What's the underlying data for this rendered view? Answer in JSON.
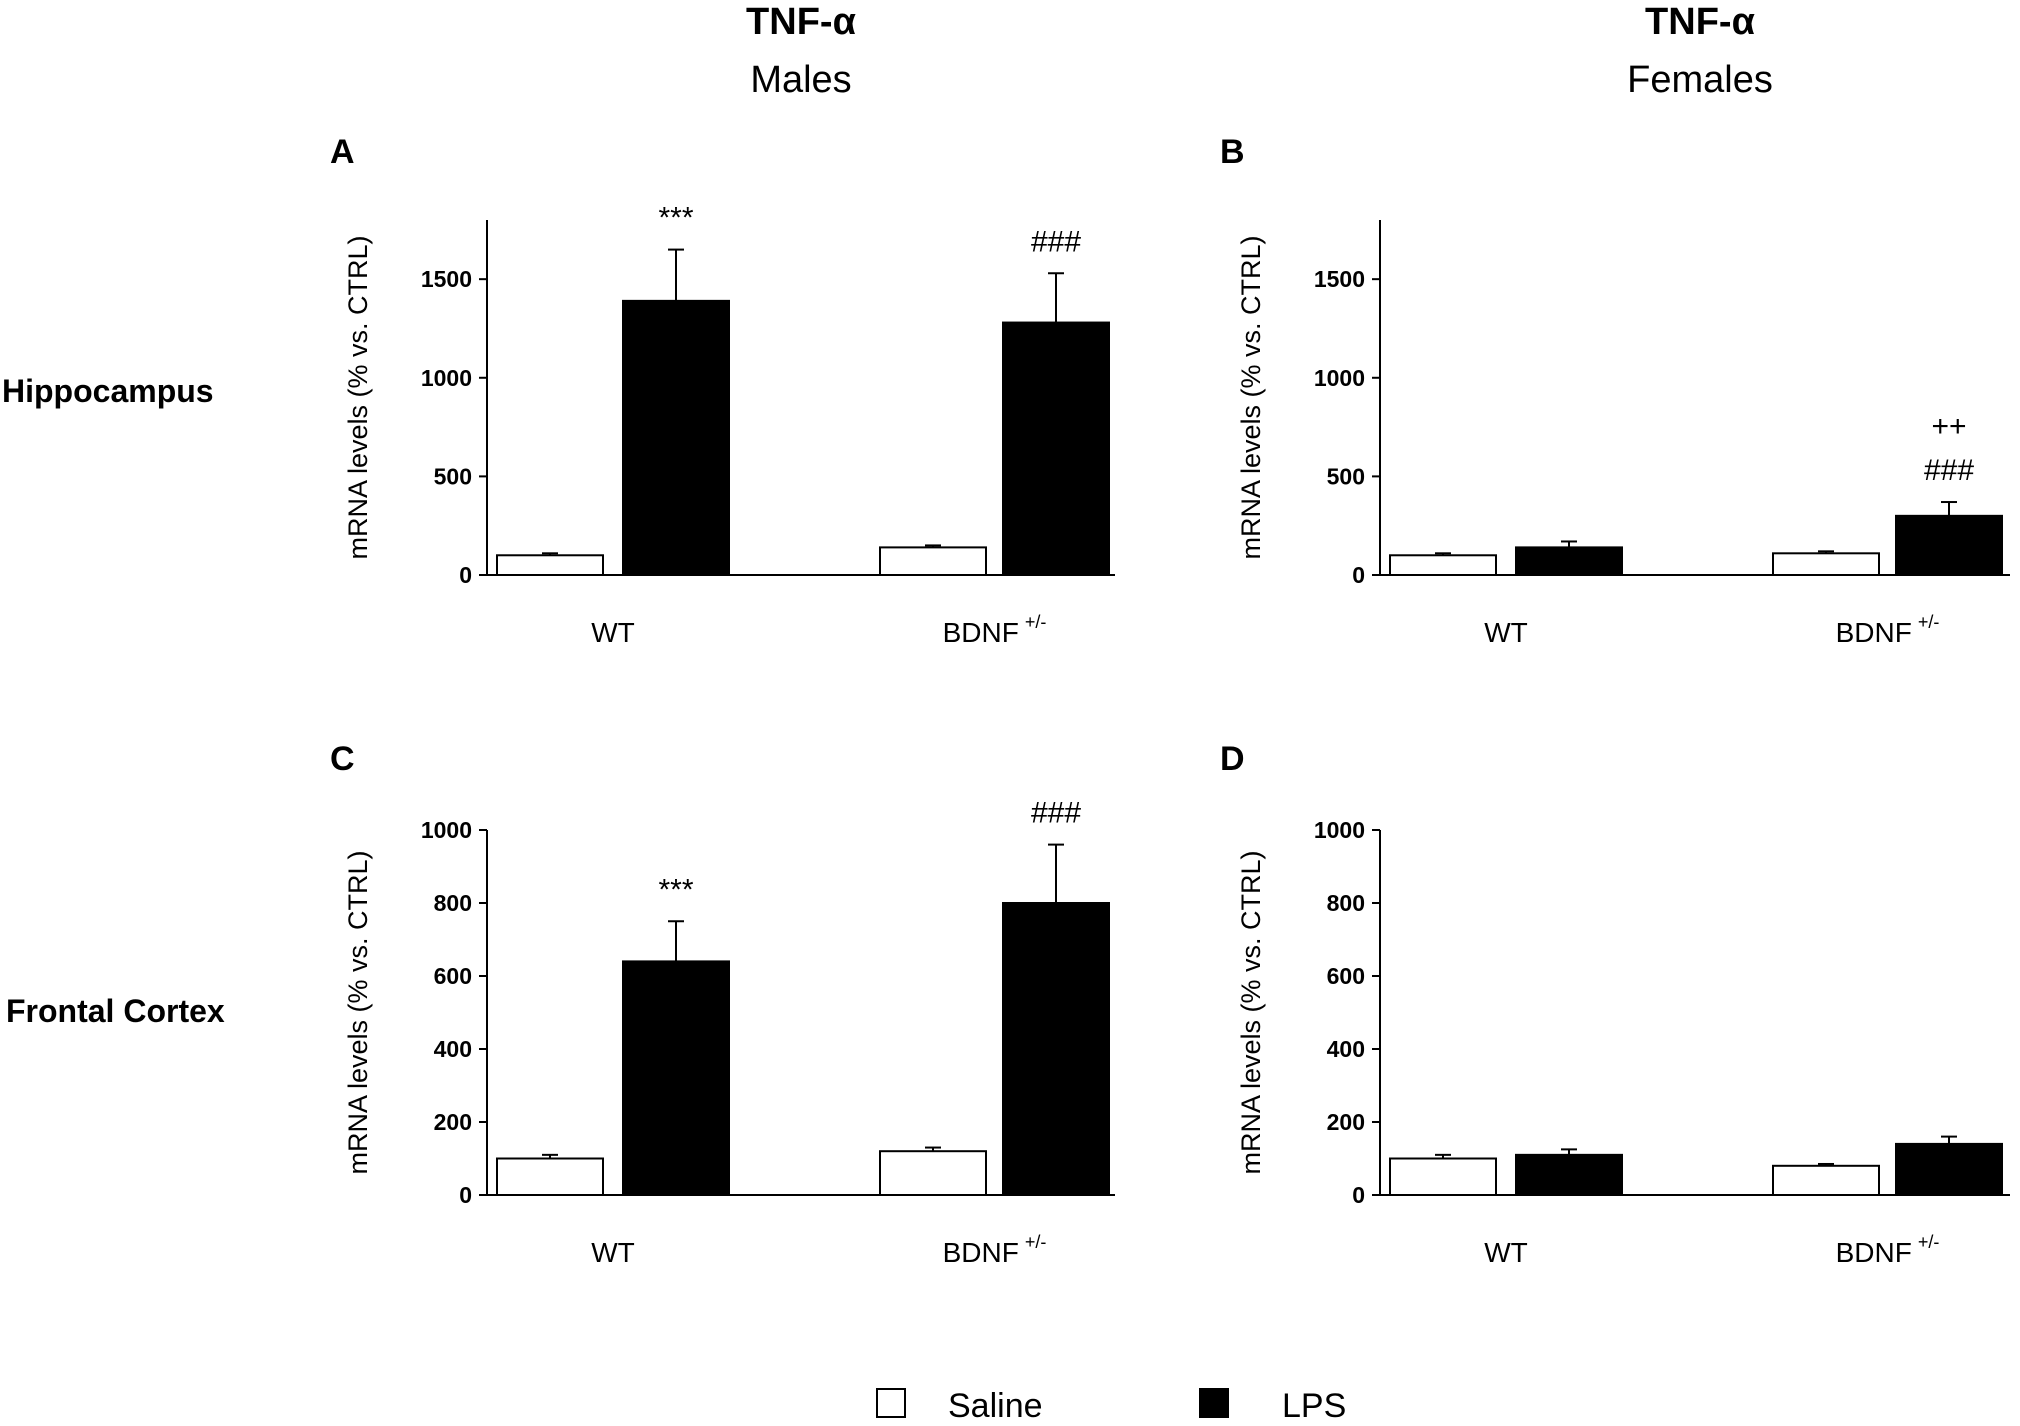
{
  "header": {
    "males_title": "TNF-α",
    "males_subtitle": "Males",
    "females_title": "TNF-α",
    "females_subtitle": "Females"
  },
  "rows": {
    "hippocampus": "Hippocampus",
    "frontal_cortex": "Frontal Cortex"
  },
  "legend": {
    "saline_label": "Saline",
    "lps_label": "LPS",
    "saline_color": "#ffffff",
    "lps_color": "#000000"
  },
  "chart_data": [
    {
      "panel": "A",
      "type": "bar",
      "region": "Hippocampus",
      "sex": "Males",
      "ylabel": "mRNA levels (% vs. CTRL)",
      "ylim": [
        0,
        1800
      ],
      "yticks": [
        0,
        500,
        1000,
        1500
      ],
      "categories": [
        {
          "label": "WT",
          "sup": ""
        },
        {
          "label": "BDNF",
          "sup": "+/-"
        }
      ],
      "series": [
        {
          "name": "Saline",
          "values": [
            100,
            140
          ],
          "errors": [
            10,
            10
          ]
        },
        {
          "name": "LPS",
          "values": [
            1390,
            1280
          ],
          "errors": [
            260,
            250
          ]
        }
      ],
      "annotations": [
        {
          "category": 0,
          "series": 1,
          "lines": [
            "***"
          ]
        },
        {
          "category": 1,
          "series": 1,
          "lines": [
            "###"
          ]
        }
      ]
    },
    {
      "panel": "B",
      "type": "bar",
      "region": "Hippocampus",
      "sex": "Females",
      "ylabel": "mRNA levels (% vs. CTRL)",
      "ylim": [
        0,
        1800
      ],
      "yticks": [
        0,
        500,
        1000,
        1500
      ],
      "categories": [
        {
          "label": "WT",
          "sup": ""
        },
        {
          "label": "BDNF",
          "sup": "+/-"
        }
      ],
      "series": [
        {
          "name": "Saline",
          "values": [
            100,
            110
          ],
          "errors": [
            10,
            10
          ]
        },
        {
          "name": "LPS",
          "values": [
            140,
            300
          ],
          "errors": [
            30,
            70
          ]
        }
      ],
      "annotations": [
        {
          "category": 1,
          "series": 1,
          "lines": [
            "++",
            "###"
          ]
        }
      ]
    },
    {
      "panel": "C",
      "type": "bar",
      "region": "Frontal Cortex",
      "sex": "Males",
      "ylabel": "mRNA levels (% vs. CTRL)",
      "ylim": [
        0,
        1000
      ],
      "yticks": [
        0,
        200,
        400,
        600,
        800,
        1000
      ],
      "categories": [
        {
          "label": "WT",
          "sup": ""
        },
        {
          "label": "BDNF",
          "sup": "+/-"
        }
      ],
      "series": [
        {
          "name": "Saline",
          "values": [
            100,
            120
          ],
          "errors": [
            10,
            10
          ]
        },
        {
          "name": "LPS",
          "values": [
            640,
            800
          ],
          "errors": [
            110,
            160
          ]
        }
      ],
      "annotations": [
        {
          "category": 0,
          "series": 1,
          "lines": [
            "***"
          ]
        },
        {
          "category": 1,
          "series": 1,
          "lines": [
            "###"
          ]
        }
      ]
    },
    {
      "panel": "D",
      "type": "bar",
      "region": "Frontal Cortex",
      "sex": "Females",
      "ylabel": "mRNA levels (% vs. CTRL)",
      "ylim": [
        0,
        1000
      ],
      "yticks": [
        0,
        200,
        400,
        600,
        800,
        1000
      ],
      "categories": [
        {
          "label": "WT",
          "sup": ""
        },
        {
          "label": "BDNF",
          "sup": "+/-"
        }
      ],
      "series": [
        {
          "name": "Saline",
          "values": [
            100,
            80
          ],
          "errors": [
            10,
            5
          ]
        },
        {
          "name": "LPS",
          "values": [
            110,
            140
          ],
          "errors": [
            15,
            20
          ]
        }
      ],
      "annotations": []
    }
  ]
}
